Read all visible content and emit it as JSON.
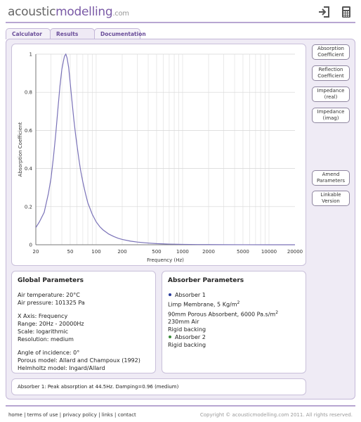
{
  "header": {
    "logo_part1": "acoustic",
    "logo_part2": "modelling",
    "logo_part3": ".com"
  },
  "tabs": [
    {
      "label": "Calculator",
      "active": false
    },
    {
      "label": "Results",
      "active": true
    },
    {
      "label": "Documentation",
      "active": false
    }
  ],
  "side_buttons": [
    {
      "line1": "Absorption",
      "line2": "Coefficient"
    },
    {
      "line1": "Reflection",
      "line2": "Coefficient"
    },
    {
      "line1": "Impedance",
      "line2": "(real)"
    },
    {
      "line1": "Impedance",
      "line2": "(imag)"
    },
    {
      "line1": "Amend",
      "line2": "Parameters"
    },
    {
      "line1": "Linkable",
      "line2": "Version"
    }
  ],
  "chart_data": {
    "type": "line",
    "ylabel": "Absorption Coefficient",
    "xlabel": "Frequency (Hz)",
    "x_scale": "log",
    "xlim": [
      20,
      20000
    ],
    "ylim": [
      0,
      1
    ],
    "grid": true,
    "x_ticks": [
      20,
      50,
      100,
      200,
      500,
      1000,
      2000,
      5000,
      10000,
      20000
    ],
    "x_tick_labels": [
      "20",
      "50",
      "100",
      "200",
      "500",
      "1000",
      "2000",
      "5000",
      "10000",
      "20000"
    ],
    "y_ticks": [
      0,
      0.2,
      0.4,
      0.6,
      0.8,
      1
    ],
    "y_tick_labels": [
      "0",
      "0.2",
      "0.4",
      "0.6",
      "0.8",
      "1"
    ],
    "series_color": "#7a72b8",
    "x": [
      20,
      22,
      25,
      28,
      30,
      32,
      34,
      36,
      38,
      40,
      42,
      43,
      44.5,
      46,
      48,
      50,
      52,
      55,
      58,
      60,
      63,
      66,
      70,
      75,
      80,
      90,
      100,
      110,
      120,
      140,
      160,
      180,
      200,
      250,
      300,
      400,
      500,
      600,
      700,
      800,
      1000,
      1500,
      2000,
      3000,
      5000,
      10000,
      20000
    ],
    "y": [
      0.09,
      0.12,
      0.17,
      0.27,
      0.35,
      0.46,
      0.58,
      0.71,
      0.83,
      0.92,
      0.97,
      0.99,
      1.0,
      0.98,
      0.93,
      0.85,
      0.77,
      0.66,
      0.57,
      0.52,
      0.45,
      0.39,
      0.33,
      0.27,
      0.22,
      0.16,
      0.12,
      0.095,
      0.078,
      0.056,
      0.043,
      0.034,
      0.028,
      0.019,
      0.014,
      0.009,
      0.006,
      0.0045,
      0.0035,
      0.003,
      0.002,
      0.0012,
      0.0008,
      0.0005,
      0.0003,
      0.0001,
      0.0
    ]
  },
  "global_params": {
    "title": "Global Parameters",
    "air_temperature": "Air temperature: 20°C",
    "air_pressure": "Air pressure: 101325 Pa",
    "x_axis": "X Axis: Frequency",
    "range": "Range: 20Hz - 20000Hz",
    "scale": "Scale: logarithmic",
    "resolution": "Resolution: medium",
    "angle": "Angle of incidence: 0°",
    "porous_model": "Porous model: Allard and Champoux (1992)",
    "helmholtz_model": "Helmholtz model: Ingard/Allard"
  },
  "absorber_params": {
    "title": "Absorber Parameters",
    "absorber1": {
      "name": "Absorber 1",
      "bullet_color": "#2a3d9c",
      "layer1_prefix": "Limp Membrane, 5 Kg/m",
      "layer1_sup": "2",
      "layer2_prefix": "90mm Porous Absorbent, 6000 Pa.s/m",
      "layer2_sup": "2",
      "layer3": "230mm Air",
      "layer4": "Rigid backing"
    },
    "absorber2": {
      "name": "Absorber 2",
      "bullet_color": "#3a8a3a",
      "layer1": "Rigid backing"
    }
  },
  "status": "Absorber 1: Peak absorption at 44.5Hz. Damping=0.96 (medium)",
  "footer": {
    "home": "home",
    "terms": "terms of use",
    "privacy": "privacy policy",
    "links": "links",
    "contact": "contact",
    "separator": "|",
    "copyright": "Copyright © acousticmodelling.com 2011. All rights reserved."
  }
}
